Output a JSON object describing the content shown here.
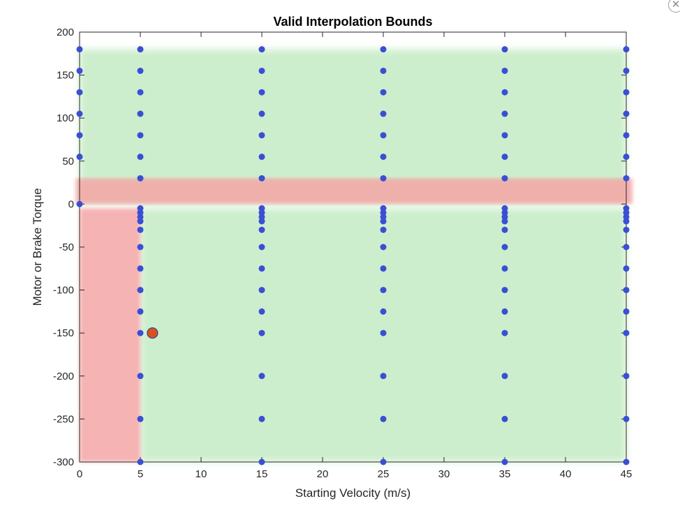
{
  "chart_data": {
    "type": "scatter",
    "title": "Valid Interpolation Bounds",
    "xlabel": "Starting Velocity (m/s)",
    "ylabel": "Motor or Brake Torque",
    "xlim": [
      0,
      45
    ],
    "ylim": [
      -300,
      200
    ],
    "xticks": [
      0,
      5,
      10,
      15,
      20,
      25,
      30,
      35,
      40,
      45
    ],
    "yticks": [
      200,
      150,
      100,
      50,
      0,
      -50,
      -100,
      -150,
      -200,
      -250,
      -300
    ],
    "grid": false,
    "legend": "none",
    "regions": [
      {
        "kind": "valid",
        "color": "#c8ecc8",
        "x": [
          0,
          45
        ],
        "y": [
          0,
          180
        ]
      },
      {
        "kind": "valid",
        "color": "#c8ecc8",
        "x": [
          5,
          45
        ],
        "y": [
          -300,
          -5
        ]
      },
      {
        "kind": "invalid",
        "color": "#f4a6a6",
        "x": [
          -0.3,
          45.5
        ],
        "y": [
          0,
          30
        ]
      },
      {
        "kind": "invalid",
        "color": "#f4a6a6",
        "x": [
          0,
          5
        ],
        "y": [
          -300,
          -5
        ]
      }
    ],
    "boundary_color": "#f08a8a",
    "series": [
      {
        "marker_color": "#3b4fd4",
        "points": [
          [
            0,
            180
          ],
          [
            0,
            155
          ],
          [
            0,
            130
          ],
          [
            0,
            105
          ],
          [
            0,
            80
          ],
          [
            0,
            55
          ],
          [
            0,
            0
          ],
          [
            5,
            180
          ],
          [
            5,
            155
          ],
          [
            5,
            130
          ],
          [
            5,
            105
          ],
          [
            5,
            80
          ],
          [
            5,
            55
          ],
          [
            5,
            30
          ],
          [
            5,
            -5
          ],
          [
            5,
            -10
          ],
          [
            5,
            -15
          ],
          [
            5,
            -20
          ],
          [
            5,
            -30
          ],
          [
            5,
            -50
          ],
          [
            5,
            -75
          ],
          [
            5,
            -100
          ],
          [
            5,
            -125
          ],
          [
            5,
            -150
          ],
          [
            5,
            -200
          ],
          [
            5,
            -250
          ],
          [
            5,
            -300
          ],
          [
            15,
            180
          ],
          [
            15,
            155
          ],
          [
            15,
            130
          ],
          [
            15,
            105
          ],
          [
            15,
            80
          ],
          [
            15,
            55
          ],
          [
            15,
            30
          ],
          [
            15,
            -5
          ],
          [
            15,
            -10
          ],
          [
            15,
            -15
          ],
          [
            15,
            -20
          ],
          [
            15,
            -30
          ],
          [
            15,
            -50
          ],
          [
            15,
            -75
          ],
          [
            15,
            -100
          ],
          [
            15,
            -125
          ],
          [
            15,
            -150
          ],
          [
            15,
            -200
          ],
          [
            15,
            -250
          ],
          [
            15,
            -300
          ],
          [
            25,
            180
          ],
          [
            25,
            155
          ],
          [
            25,
            130
          ],
          [
            25,
            105
          ],
          [
            25,
            80
          ],
          [
            25,
            55
          ],
          [
            25,
            30
          ],
          [
            25,
            -5
          ],
          [
            25,
            -10
          ],
          [
            25,
            -15
          ],
          [
            25,
            -20
          ],
          [
            25,
            -30
          ],
          [
            25,
            -50
          ],
          [
            25,
            -75
          ],
          [
            25,
            -100
          ],
          [
            25,
            -125
          ],
          [
            25,
            -150
          ],
          [
            25,
            -200
          ],
          [
            25,
            -250
          ],
          [
            25,
            -300
          ],
          [
            35,
            180
          ],
          [
            35,
            155
          ],
          [
            35,
            130
          ],
          [
            35,
            105
          ],
          [
            35,
            80
          ],
          [
            35,
            55
          ],
          [
            35,
            30
          ],
          [
            35,
            -5
          ],
          [
            35,
            -10
          ],
          [
            35,
            -15
          ],
          [
            35,
            -20
          ],
          [
            35,
            -30
          ],
          [
            35,
            -50
          ],
          [
            35,
            -75
          ],
          [
            35,
            -100
          ],
          [
            35,
            -125
          ],
          [
            35,
            -150
          ],
          [
            35,
            -200
          ],
          [
            35,
            -250
          ],
          [
            35,
            -300
          ],
          [
            45,
            180
          ],
          [
            45,
            155
          ],
          [
            45,
            130
          ],
          [
            45,
            105
          ],
          [
            45,
            80
          ],
          [
            45,
            55
          ],
          [
            45,
            30
          ],
          [
            45,
            -5
          ],
          [
            45,
            -10
          ],
          [
            45,
            -15
          ],
          [
            45,
            -20
          ],
          [
            45,
            -30
          ],
          [
            45,
            -50
          ],
          [
            45,
            -75
          ],
          [
            45,
            -100
          ],
          [
            45,
            -125
          ],
          [
            45,
            -150
          ],
          [
            45,
            -200
          ],
          [
            45,
            -250
          ],
          [
            45,
            -300
          ]
        ]
      },
      {
        "marker_color": "#d95319",
        "points": [
          [
            6,
            -150
          ]
        ]
      }
    ]
  },
  "window": {
    "close_icon": "close-icon",
    "close_glyph": "✕"
  }
}
